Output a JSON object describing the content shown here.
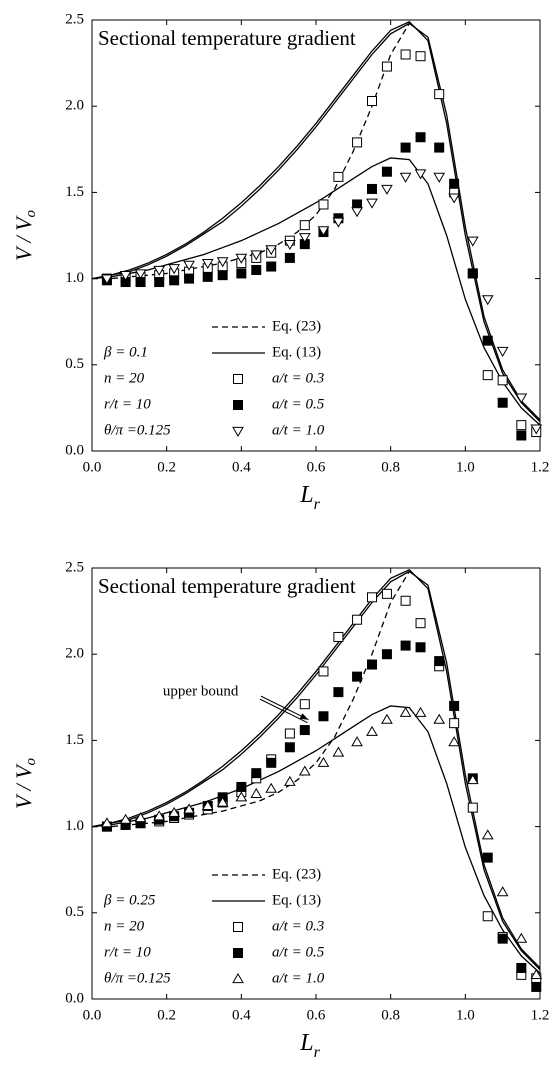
{
  "chart_data": [
    {
      "type": "line",
      "title": "Sectional temperature gradient",
      "x_label": {
        "main": "L",
        "sub": "r"
      },
      "y_label": {
        "main": "V / V",
        "sub": "o"
      },
      "xlim": [
        0,
        1.2
      ],
      "ylim": [
        0,
        2.5
      ],
      "xticks": [
        {
          "value": 0,
          "label": "0.0"
        },
        0.2,
        0.4,
        0.6,
        0.8,
        {
          "value": 1,
          "label": "1.0"
        },
        1.2
      ],
      "yticks": [
        {
          "value": 0,
          "label": "0.0"
        },
        0.5,
        {
          "value": 1,
          "label": "1.0"
        },
        1.5,
        {
          "value": 2,
          "label": "2.0"
        },
        2.5
      ],
      "parameters": [
        "β  = 0.1",
        "n  = 20",
        "r/t  =  10",
        "θ/π =0.125"
      ],
      "series": [
        {
          "name": "Eq. (23)",
          "style": "dashed",
          "color": "#000",
          "x": [
            0,
            0.05,
            0.1,
            0.15,
            0.2,
            0.25,
            0.3,
            0.35,
            0.4,
            0.45,
            0.5,
            0.55,
            0.6,
            0.65,
            0.7,
            0.75,
            0.8,
            0.85
          ],
          "values": [
            1.0,
            1.0,
            1.01,
            1.02,
            1.03,
            1.05,
            1.07,
            1.09,
            1.12,
            1.15,
            1.2,
            1.27,
            1.37,
            1.52,
            1.74,
            2.0,
            2.3,
            2.48
          ]
        },
        {
          "name": "Eq. (13)",
          "style": "solid",
          "color": "#000",
          "x": [
            0,
            0.05,
            0.1,
            0.15,
            0.2,
            0.25,
            0.3,
            0.35,
            0.4,
            0.45,
            0.5,
            0.55,
            0.6,
            0.65,
            0.7,
            0.75,
            0.8,
            0.85,
            0.9,
            0.95,
            1.0,
            1.05,
            1.1,
            1.15,
            1.2
          ],
          "values": [
            1.0,
            1.02,
            1.05,
            1.09,
            1.14,
            1.2,
            1.27,
            1.35,
            1.44,
            1.54,
            1.65,
            1.77,
            1.9,
            2.04,
            2.18,
            2.32,
            2.44,
            2.49,
            2.38,
            1.9,
            1.25,
            0.75,
            0.45,
            0.28,
            0.17
          ]
        },
        {
          "style": "solid",
          "color": "#000",
          "x": [
            0,
            0.05,
            0.1,
            0.15,
            0.2,
            0.25,
            0.3,
            0.35,
            0.4,
            0.45,
            0.5,
            0.55,
            0.6,
            0.65,
            0.7,
            0.75,
            0.8,
            0.85,
            0.9,
            0.95,
            1.0,
            1.05,
            1.1,
            1.15,
            1.2
          ],
          "values": [
            1.0,
            1.02,
            1.04,
            1.08,
            1.13,
            1.19,
            1.26,
            1.33,
            1.42,
            1.52,
            1.63,
            1.75,
            1.88,
            2.02,
            2.16,
            2.3,
            2.42,
            2.48,
            2.4,
            1.95,
            1.3,
            0.78,
            0.47,
            0.29,
            0.18
          ]
        },
        {
          "style": "solid",
          "color": "#000",
          "x": [
            0,
            0.05,
            0.1,
            0.15,
            0.2,
            0.25,
            0.3,
            0.35,
            0.4,
            0.45,
            0.5,
            0.55,
            0.6,
            0.65,
            0.7,
            0.75,
            0.8,
            0.85,
            0.9,
            0.95,
            1.0,
            1.05,
            1.1,
            1.15,
            1.2
          ],
          "values": [
            1.0,
            1.01,
            1.03,
            1.05,
            1.08,
            1.11,
            1.14,
            1.18,
            1.22,
            1.27,
            1.32,
            1.38,
            1.44,
            1.51,
            1.58,
            1.65,
            1.7,
            1.69,
            1.55,
            1.25,
            0.88,
            0.6,
            0.4,
            0.25,
            0.15
          ]
        },
        {
          "name": "a/t = 0.3",
          "marker": "square-open",
          "color": "#000",
          "x": [
            0.04,
            0.09,
            0.13,
            0.18,
            0.22,
            0.26,
            0.31,
            0.35,
            0.4,
            0.44,
            0.48,
            0.53,
            0.57,
            0.62,
            0.66,
            0.71,
            0.75,
            0.79,
            0.84,
            0.88,
            0.93,
            0.97,
            1.02,
            1.06,
            1.1,
            1.15,
            1.19
          ],
          "values": [
            1.0,
            1.0,
            1.01,
            1.02,
            1.03,
            1.04,
            1.06,
            1.07,
            1.09,
            1.12,
            1.15,
            1.22,
            1.31,
            1.43,
            1.59,
            1.79,
            2.03,
            2.23,
            2.3,
            2.29,
            2.07,
            1.5,
            1.03,
            0.44,
            0.41,
            0.15,
            0.11
          ]
        },
        {
          "name": "a/t = 0.5",
          "marker": "square-filled",
          "color": "#000",
          "x": [
            0.04,
            0.09,
            0.13,
            0.18,
            0.22,
            0.26,
            0.31,
            0.35,
            0.4,
            0.44,
            0.48,
            0.53,
            0.57,
            0.62,
            0.66,
            0.71,
            0.75,
            0.79,
            0.84,
            0.88,
            0.93,
            0.97,
            1.02,
            1.06,
            1.1,
            1.15
          ],
          "values": [
            0.99,
            0.98,
            0.98,
            0.98,
            0.99,
            1.0,
            1.01,
            1.02,
            1.03,
            1.05,
            1.07,
            1.12,
            1.2,
            1.27,
            1.35,
            1.43,
            1.52,
            1.62,
            1.76,
            1.82,
            1.76,
            1.55,
            1.03,
            0.64,
            0.28,
            0.09
          ]
        },
        {
          "name": "a/t = 1.0",
          "marker": "triangle-down-open",
          "color": "#000",
          "x": [
            0.04,
            0.09,
            0.13,
            0.18,
            0.22,
            0.26,
            0.31,
            0.35,
            0.4,
            0.44,
            0.48,
            0.53,
            0.57,
            0.62,
            0.66,
            0.71,
            0.75,
            0.79,
            0.84,
            0.88,
            0.93,
            0.97,
            1.02,
            1.06,
            1.1,
            1.15,
            1.19
          ],
          "values": [
            1.0,
            1.02,
            1.03,
            1.05,
            1.06,
            1.08,
            1.09,
            1.1,
            1.12,
            1.14,
            1.17,
            1.2,
            1.24,
            1.28,
            1.33,
            1.39,
            1.44,
            1.52,
            1.59,
            1.61,
            1.59,
            1.47,
            1.22,
            0.88,
            0.58,
            0.31,
            0.13
          ]
        }
      ]
    },
    {
      "type": "line",
      "title": "Sectional temperature gradient",
      "x_label": {
        "main": "L",
        "sub": "r"
      },
      "y_label": {
        "main": "V / V",
        "sub": "o"
      },
      "xlim": [
        0,
        1.2
      ],
      "ylim": [
        0,
        2.5
      ],
      "xticks": [
        {
          "value": 0,
          "label": "0.0"
        },
        0.2,
        0.4,
        0.6,
        0.8,
        {
          "value": 1,
          "label": "1.0"
        },
        1.2
      ],
      "yticks": [
        {
          "value": 0,
          "label": "0.0"
        },
        0.5,
        {
          "value": 1,
          "label": "1.0"
        },
        1.5,
        {
          "value": 2,
          "label": "2.0"
        },
        2.5
      ],
      "parameters": [
        "β  = 0.25",
        "n  = 20",
        "r/t  =  10",
        "θ/π =0.125"
      ],
      "annotation": {
        "text": "upper bound",
        "x": 0.19,
        "y": 1.78,
        "arrow_x": 0.58,
        "arrow_y": 1.62
      },
      "series": [
        {
          "name": "Eq. (23)",
          "style": "dashed",
          "color": "#000",
          "x": [
            0,
            0.05,
            0.1,
            0.15,
            0.2,
            0.25,
            0.3,
            0.35,
            0.4,
            0.45,
            0.5,
            0.55,
            0.6,
            0.65,
            0.7,
            0.75,
            0.8,
            0.85
          ],
          "values": [
            1.0,
            1.0,
            1.01,
            1.02,
            1.03,
            1.05,
            1.07,
            1.09,
            1.12,
            1.15,
            1.2,
            1.27,
            1.37,
            1.52,
            1.74,
            2.0,
            2.3,
            2.48
          ]
        },
        {
          "name": "Eq. (13)",
          "style": "solid",
          "color": "#000",
          "x": [
            0,
            0.05,
            0.1,
            0.15,
            0.2,
            0.25,
            0.3,
            0.35,
            0.4,
            0.45,
            0.5,
            0.55,
            0.6,
            0.65,
            0.7,
            0.75,
            0.8,
            0.85,
            0.9,
            0.95,
            1.0,
            1.05,
            1.1,
            1.15,
            1.2
          ],
          "values": [
            1.0,
            1.02,
            1.05,
            1.09,
            1.14,
            1.2,
            1.27,
            1.35,
            1.44,
            1.54,
            1.65,
            1.77,
            1.9,
            2.04,
            2.18,
            2.32,
            2.44,
            2.49,
            2.38,
            1.9,
            1.25,
            0.75,
            0.45,
            0.28,
            0.17
          ]
        },
        {
          "style": "solid",
          "color": "#000",
          "x": [
            0,
            0.05,
            0.1,
            0.15,
            0.2,
            0.25,
            0.3,
            0.35,
            0.4,
            0.45,
            0.5,
            0.55,
            0.6,
            0.65,
            0.7,
            0.75,
            0.8,
            0.85,
            0.9,
            0.95,
            1.0,
            1.05,
            1.1,
            1.15,
            1.2
          ],
          "values": [
            1.0,
            1.02,
            1.04,
            1.08,
            1.13,
            1.19,
            1.26,
            1.33,
            1.42,
            1.52,
            1.63,
            1.75,
            1.88,
            2.02,
            2.16,
            2.3,
            2.42,
            2.48,
            2.4,
            1.95,
            1.3,
            0.78,
            0.47,
            0.29,
            0.18
          ]
        },
        {
          "style": "solid",
          "color": "#000",
          "x": [
            0,
            0.05,
            0.1,
            0.15,
            0.2,
            0.25,
            0.3,
            0.35,
            0.4,
            0.45,
            0.5,
            0.55,
            0.6,
            0.65,
            0.7,
            0.75,
            0.8,
            0.85,
            0.9,
            0.95,
            1.0,
            1.05,
            1.1,
            1.15,
            1.2
          ],
          "values": [
            1.0,
            1.01,
            1.03,
            1.05,
            1.08,
            1.11,
            1.14,
            1.18,
            1.22,
            1.27,
            1.32,
            1.38,
            1.44,
            1.51,
            1.58,
            1.65,
            1.7,
            1.69,
            1.55,
            1.25,
            0.88,
            0.6,
            0.4,
            0.25,
            0.15
          ]
        },
        {
          "name": "a/t = 0.3",
          "marker": "square-open",
          "color": "#000",
          "x": [
            0.04,
            0.09,
            0.13,
            0.18,
            0.22,
            0.26,
            0.31,
            0.35,
            0.4,
            0.44,
            0.48,
            0.53,
            0.57,
            0.62,
            0.66,
            0.71,
            0.75,
            0.79,
            0.84,
            0.88,
            0.93,
            0.97,
            1.02,
            1.06,
            1.1,
            1.15,
            1.19
          ],
          "values": [
            1.0,
            1.01,
            1.02,
            1.03,
            1.05,
            1.07,
            1.1,
            1.14,
            1.2,
            1.28,
            1.39,
            1.54,
            1.71,
            1.9,
            2.1,
            2.2,
            2.33,
            2.35,
            2.31,
            2.18,
            1.93,
            1.6,
            1.11,
            0.48,
            0.36,
            0.14,
            0.12
          ]
        },
        {
          "name": "a/t = 0.5",
          "marker": "square-filled",
          "color": "#000",
          "x": [
            0.04,
            0.09,
            0.13,
            0.18,
            0.22,
            0.26,
            0.31,
            0.35,
            0.4,
            0.44,
            0.48,
            0.53,
            0.57,
            0.62,
            0.66,
            0.71,
            0.75,
            0.79,
            0.84,
            0.88,
            0.93,
            0.97,
            1.02,
            1.06,
            1.1,
            1.15,
            1.19
          ],
          "values": [
            1.0,
            1.01,
            1.02,
            1.04,
            1.06,
            1.08,
            1.12,
            1.17,
            1.23,
            1.31,
            1.37,
            1.46,
            1.56,
            1.64,
            1.78,
            1.87,
            1.94,
            2.0,
            2.05,
            2.04,
            1.96,
            1.7,
            1.28,
            0.82,
            0.35,
            0.18,
            0.07
          ]
        },
        {
          "name": "a/t = 1.0",
          "marker": "triangle-up-open",
          "color": "#000",
          "x": [
            0.04,
            0.09,
            0.13,
            0.18,
            0.22,
            0.26,
            0.31,
            0.35,
            0.4,
            0.44,
            0.48,
            0.53,
            0.57,
            0.62,
            0.66,
            0.71,
            0.75,
            0.79,
            0.84,
            0.88,
            0.93,
            0.97,
            1.02,
            1.06,
            1.1,
            1.15,
            1.19
          ],
          "values": [
            1.02,
            1.04,
            1.05,
            1.06,
            1.08,
            1.1,
            1.12,
            1.14,
            1.17,
            1.19,
            1.22,
            1.26,
            1.32,
            1.37,
            1.43,
            1.49,
            1.55,
            1.62,
            1.66,
            1.66,
            1.62,
            1.49,
            1.27,
            0.95,
            0.62,
            0.35,
            0.14
          ]
        }
      ]
    }
  ]
}
